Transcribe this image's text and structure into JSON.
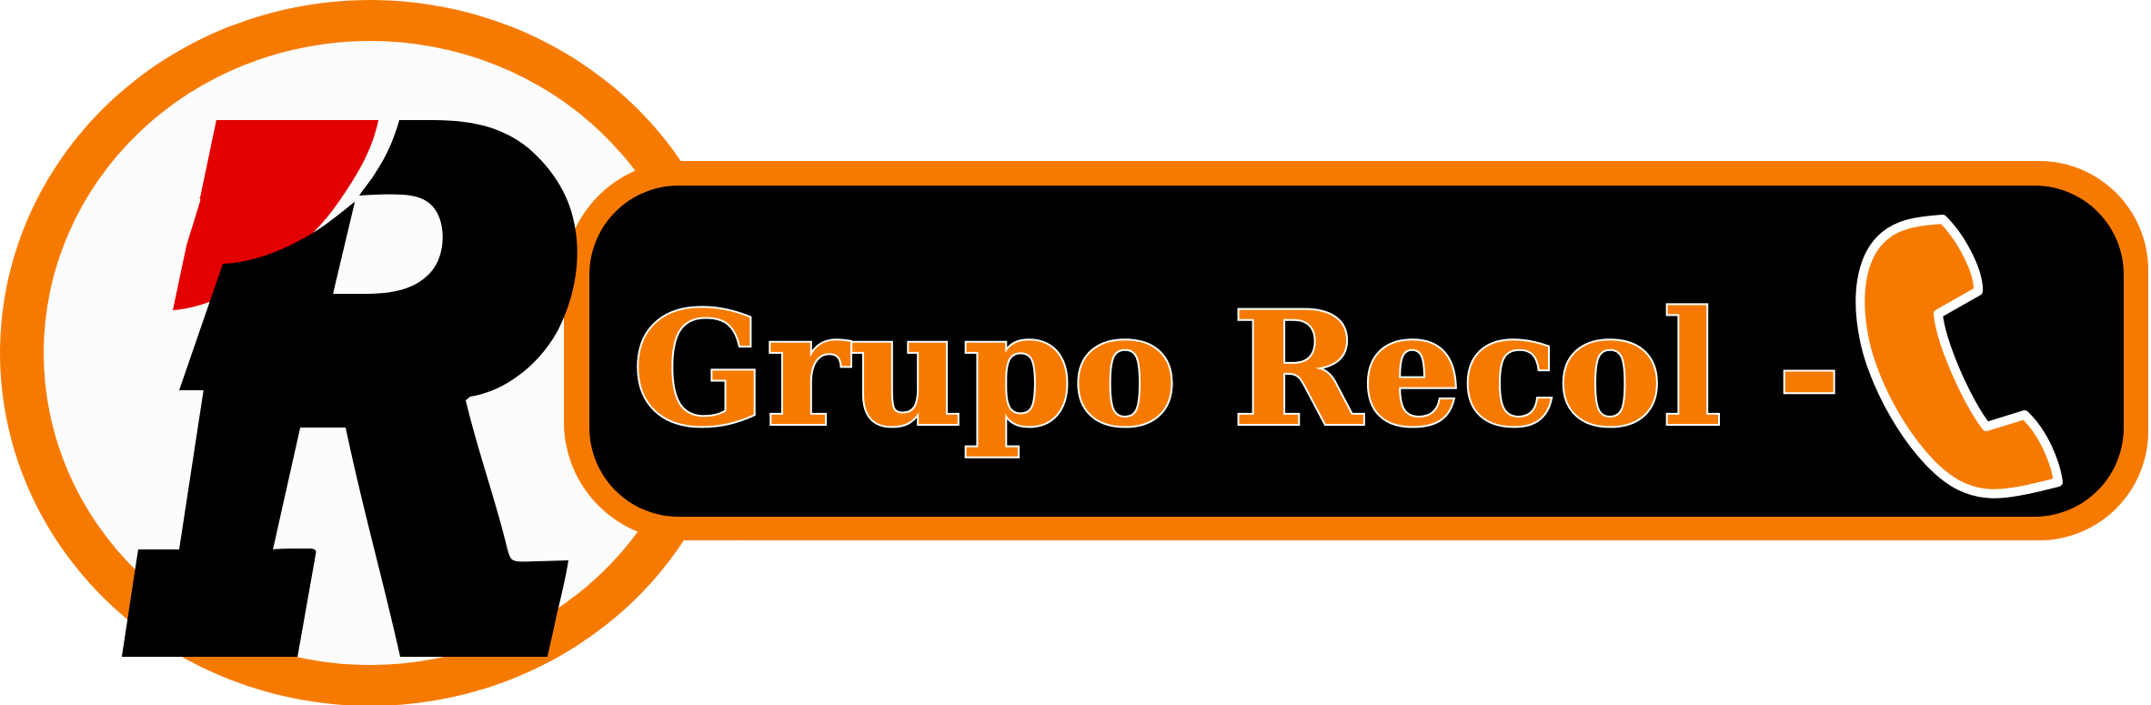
{
  "logo": {
    "text": "Grupo Recol -",
    "monogram": "R",
    "colors": {
      "orange": "#F77A00",
      "black": "#000000",
      "red": "#E30000",
      "white": "#FFFFFF",
      "circle_fill": "#FCFCFC"
    },
    "icon": "phone-icon"
  }
}
